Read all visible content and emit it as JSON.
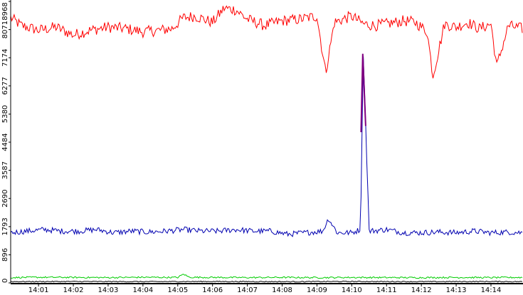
{
  "chart_data": {
    "type": "line",
    "title": "",
    "xlabel": "",
    "ylabel": "",
    "ylim": [
      0,
      8968
    ],
    "xlim": [
      "14:00:12",
      "14:14:54"
    ],
    "y_ticks": [
      0,
      896,
      1793,
      2690,
      3587,
      4484,
      5380,
      6277,
      7174,
      8071,
      8968
    ],
    "x_ticks": [
      "14:01",
      "14:02",
      "14:03",
      "14:04",
      "14:05",
      "14:06",
      "14:07",
      "14:08",
      "14:09",
      "14:10",
      "14:11",
      "14:12",
      "14:13",
      "14:14"
    ],
    "grid": false,
    "legend": "none",
    "colors": {
      "red": "#ff0000",
      "blue": "#0000b0",
      "green": "#00cc00",
      "black": "#000000",
      "purple": "#800080",
      "axis": "#000000"
    },
    "series": [
      {
        "color": "red",
        "x": [
          "14:00:12",
          "14:00:30",
          "14:01:00",
          "14:01:30",
          "14:02:00",
          "14:02:30",
          "14:03:00",
          "14:03:30",
          "14:04:00",
          "14:04:30",
          "14:04:50",
          "14:05:10",
          "14:05:30",
          "14:06:00",
          "14:06:20",
          "14:06:40",
          "14:07:00",
          "14:07:30",
          "14:08:00",
          "14:08:30",
          "14:09:00",
          "14:09:15",
          "14:09:30",
          "14:10:00",
          "14:10:20",
          "14:10:40",
          "14:11:00",
          "14:11:30",
          "14:11:50",
          "14:12:10",
          "14:12:20",
          "14:12:40",
          "14:13:00",
          "14:13:20",
          "14:13:40",
          "14:14:00",
          "14:14:10",
          "14:14:30",
          "14:14:54"
        ],
        "y": [
          8450,
          8200,
          8050,
          8150,
          7900,
          8050,
          8150,
          8100,
          8000,
          8050,
          8100,
          8450,
          8500,
          8300,
          8750,
          8700,
          8400,
          8200,
          8350,
          8400,
          8500,
          6700,
          8300,
          8500,
          8250,
          8200,
          8250,
          8350,
          8300,
          8000,
          6600,
          8250,
          8150,
          8300,
          8100,
          8250,
          6900,
          8200,
          8100
        ],
        "noise": 180
      },
      {
        "color": "blue",
        "x": [
          "14:00:12",
          "14:00:40",
          "14:01:10",
          "14:01:40",
          "14:02:10",
          "14:02:40",
          "14:03:10",
          "14:03:40",
          "14:04:10",
          "14:04:40",
          "14:05:10",
          "14:05:40",
          "14:06:10",
          "14:06:40",
          "14:07:10",
          "14:07:40",
          "14:08:10",
          "14:08:40",
          "14:09:10",
          "14:09:20",
          "14:09:35",
          "14:10:00",
          "14:10:15",
          "14:10:20",
          "14:10:30",
          "14:11:00",
          "14:11:30",
          "14:12:00",
          "14:12:30",
          "14:13:00",
          "14:13:30",
          "14:14:00",
          "14:14:30",
          "14:14:54"
        ],
        "y": [
          1600,
          1650,
          1700,
          1650,
          1650,
          1700,
          1600,
          1650,
          1620,
          1650,
          1700,
          1650,
          1650,
          1700,
          1650,
          1650,
          1550,
          1600,
          1650,
          2050,
          1600,
          1600,
          1700,
          7300,
          1650,
          1700,
          1600,
          1600,
          1620,
          1600,
          1650,
          1600,
          1620,
          1600
        ],
        "noise": 90
      },
      {
        "color": "green",
        "x": [
          "14:00:12",
          "14:01:00",
          "14:02:00",
          "14:03:00",
          "14:04:00",
          "14:05:00",
          "14:05:10",
          "14:05:20",
          "14:06:00",
          "14:07:00",
          "14:08:00",
          "14:09:00",
          "14:10:00",
          "14:11:00",
          "14:12:00",
          "14:13:00",
          "14:14:00",
          "14:14:54"
        ],
        "y": [
          170,
          180,
          175,
          170,
          180,
          175,
          280,
          180,
          175,
          170,
          175,
          170,
          175,
          170,
          170,
          175,
          170,
          175
        ],
        "noise": 25
      },
      {
        "color": "black",
        "x": [
          "14:00:12",
          "14:02:00",
          "14:04:00",
          "14:06:00",
          "14:08:00",
          "14:10:00",
          "14:12:00",
          "14:14:00",
          "14:14:54"
        ],
        "y": [
          40,
          45,
          40,
          45,
          40,
          45,
          40,
          45,
          40
        ],
        "noise": 15
      },
      {
        "color": "purple",
        "x": [
          "14:10:16",
          "14:10:19",
          "14:10:24"
        ],
        "y": [
          4800,
          7300,
          5000
        ],
        "noise": 0
      }
    ]
  }
}
